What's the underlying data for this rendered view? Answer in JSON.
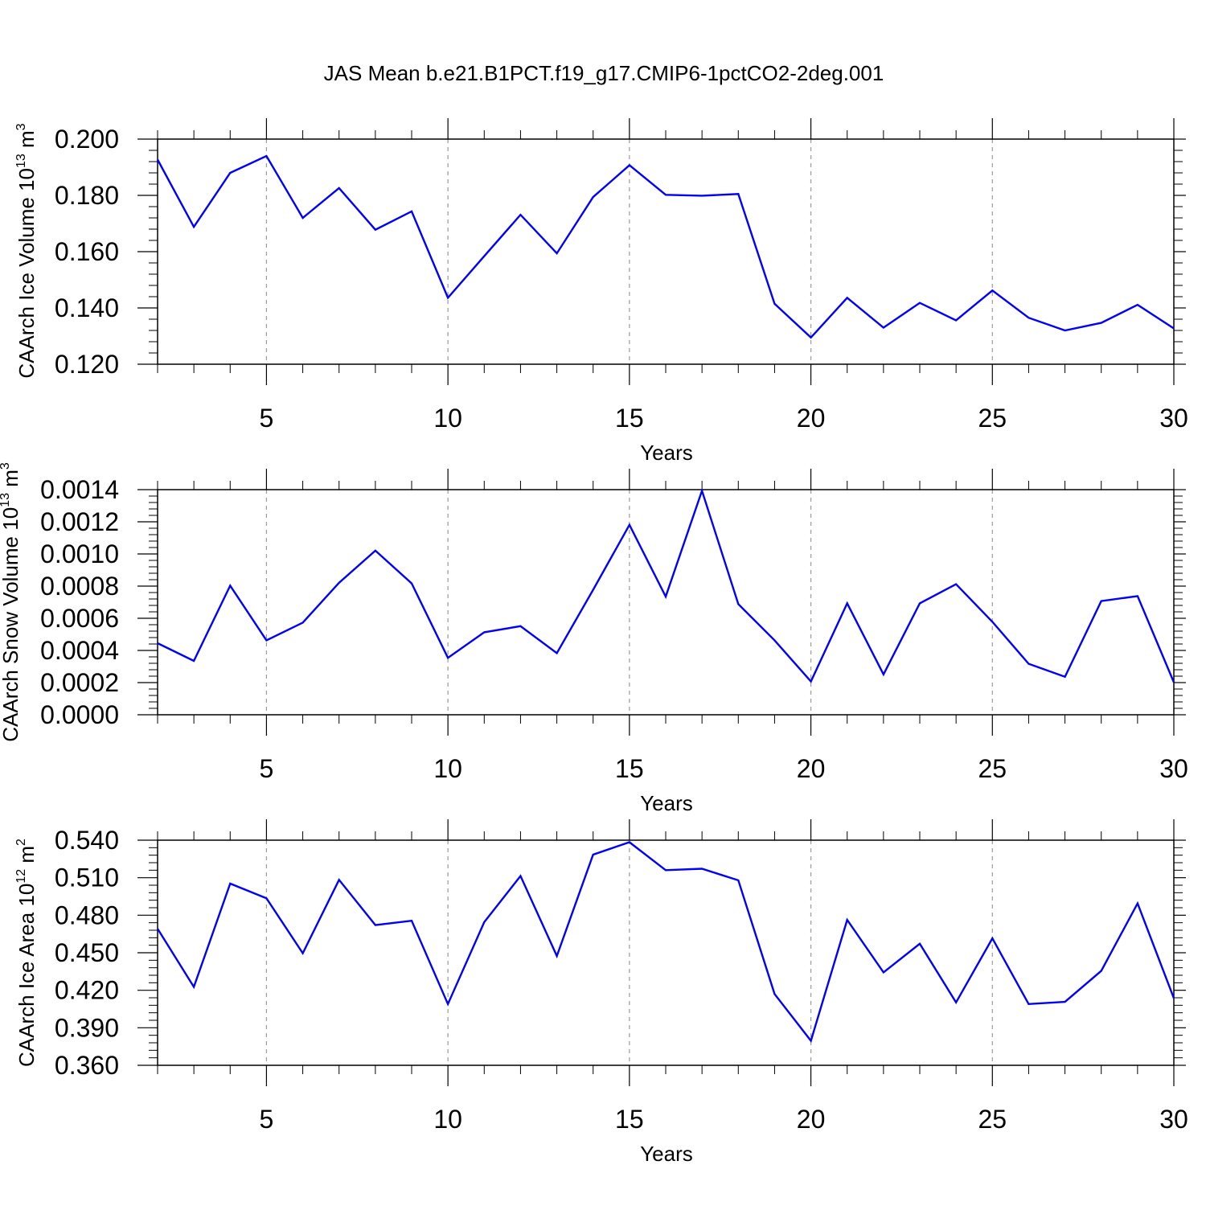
{
  "chart_data": [
    {
      "type": "line",
      "title": "JAS Mean b.e21.B1PCT.f19_g17.CMIP6-1pctCO2-2deg.001",
      "xlabel": "Years",
      "ylabel": {
        "text": "CAArch Ice Volume 10",
        "sup": "13",
        "unit": " m",
        "unit_sup": "3"
      },
      "xlim": [
        2,
        30
      ],
      "xticks": [
        5,
        10,
        15,
        20,
        25,
        30
      ],
      "xtick_labels": [
        "5",
        "10",
        "15",
        "20",
        "25",
        "30"
      ],
      "ylim": [
        0.12,
        0.2
      ],
      "yticks": [
        0.12,
        0.14,
        0.16,
        0.18,
        0.2
      ],
      "ytick_labels": [
        "0.120",
        "0.140",
        "0.160",
        "0.180",
        "0.200"
      ],
      "x": [
        2,
        3,
        4,
        5,
        6,
        7,
        8,
        9,
        10,
        11,
        12,
        13,
        14,
        15,
        16,
        17,
        18,
        19,
        20,
        21,
        22,
        23,
        24,
        25,
        26,
        27,
        28,
        29,
        30
      ],
      "series": [
        {
          "name": "CAArch Ice Volume",
          "color": "#0000ff",
          "values": [
            0.1927,
            0.1688,
            0.188,
            0.194,
            0.172,
            0.1826,
            0.1678,
            0.1743,
            0.1436,
            0.1584,
            0.1731,
            0.1594,
            0.1794,
            0.1907,
            0.1802,
            0.1799,
            0.1805,
            0.1415,
            0.1295,
            0.1436,
            0.133,
            0.1418,
            0.1356,
            0.1462,
            0.1365,
            0.132,
            0.1347,
            0.1411,
            0.1327
          ]
        }
      ]
    },
    {
      "type": "line",
      "xlabel": "Years",
      "ylabel": {
        "text": "CAArch Snow Volume 10",
        "sup": "13",
        "unit": " m",
        "unit_sup": "3"
      },
      "xlim": [
        2,
        30
      ],
      "xticks": [
        5,
        10,
        15,
        20,
        25,
        30
      ],
      "xtick_labels": [
        "5",
        "10",
        "15",
        "20",
        "25",
        "30"
      ],
      "ylim": [
        0,
        0.0014
      ],
      "yticks": [
        0,
        0.0002,
        0.0004,
        0.0006,
        0.0008,
        0.001,
        0.0012,
        0.0014
      ],
      "ytick_labels": [
        "0.0000",
        "0.0002",
        "0.0004",
        "0.0006",
        "0.0008",
        "0.0010",
        "0.0012",
        "0.0014"
      ],
      "x": [
        2,
        3,
        4,
        5,
        6,
        7,
        8,
        9,
        10,
        11,
        12,
        13,
        14,
        15,
        16,
        17,
        18,
        19,
        20,
        21,
        22,
        23,
        24,
        25,
        26,
        27,
        28,
        29,
        30
      ],
      "series": [
        {
          "name": "CAArch Snow Volume",
          "color": "#0000ff",
          "values": [
            0.000445,
            0.000335,
            0.000803,
            0.000463,
            0.000573,
            0.000821,
            0.001021,
            0.000817,
            0.000354,
            0.000513,
            0.000551,
            0.000383,
            0.000777,
            0.001181,
            0.000735,
            0.001393,
            0.000688,
            0.000463,
            0.000207,
            0.000693,
            0.000251,
            0.000693,
            0.000812,
            0.000578,
            0.000317,
            0.000236,
            0.000707,
            0.000738,
            0.000202
          ]
        }
      ]
    },
    {
      "type": "line",
      "xlabel": "Years",
      "ylabel": {
        "text": "CAArch Ice Area 10",
        "sup": "12",
        "unit": " m",
        "unit_sup": "2"
      },
      "xlim": [
        2,
        30
      ],
      "xticks": [
        5,
        10,
        15,
        20,
        25,
        30
      ],
      "xtick_labels": [
        "5",
        "10",
        "15",
        "20",
        "25",
        "30"
      ],
      "ylim": [
        0.36,
        0.54
      ],
      "yticks": [
        0.36,
        0.39,
        0.42,
        0.45,
        0.48,
        0.51,
        0.54
      ],
      "ytick_labels": [
        "0.360",
        "0.390",
        "0.420",
        "0.450",
        "0.480",
        "0.510",
        "0.540"
      ],
      "x": [
        2,
        3,
        4,
        5,
        6,
        7,
        8,
        9,
        10,
        11,
        12,
        13,
        14,
        15,
        16,
        17,
        18,
        19,
        20,
        21,
        22,
        23,
        24,
        25,
        26,
        27,
        28,
        29,
        30
      ],
      "series": [
        {
          "name": "CAArch Ice Area",
          "color": "#0000ff",
          "values": [
            0.4692,
            0.4227,
            0.5053,
            0.4936,
            0.4496,
            0.5083,
            0.4721,
            0.4756,
            0.409,
            0.4745,
            0.5114,
            0.4474,
            0.5284,
            0.5384,
            0.516,
            0.5172,
            0.5079,
            0.417,
            0.3796,
            0.4763,
            0.4343,
            0.4572,
            0.4103,
            0.4615,
            0.409,
            0.4107,
            0.4355,
            0.4895,
            0.4136
          ]
        }
      ]
    }
  ]
}
